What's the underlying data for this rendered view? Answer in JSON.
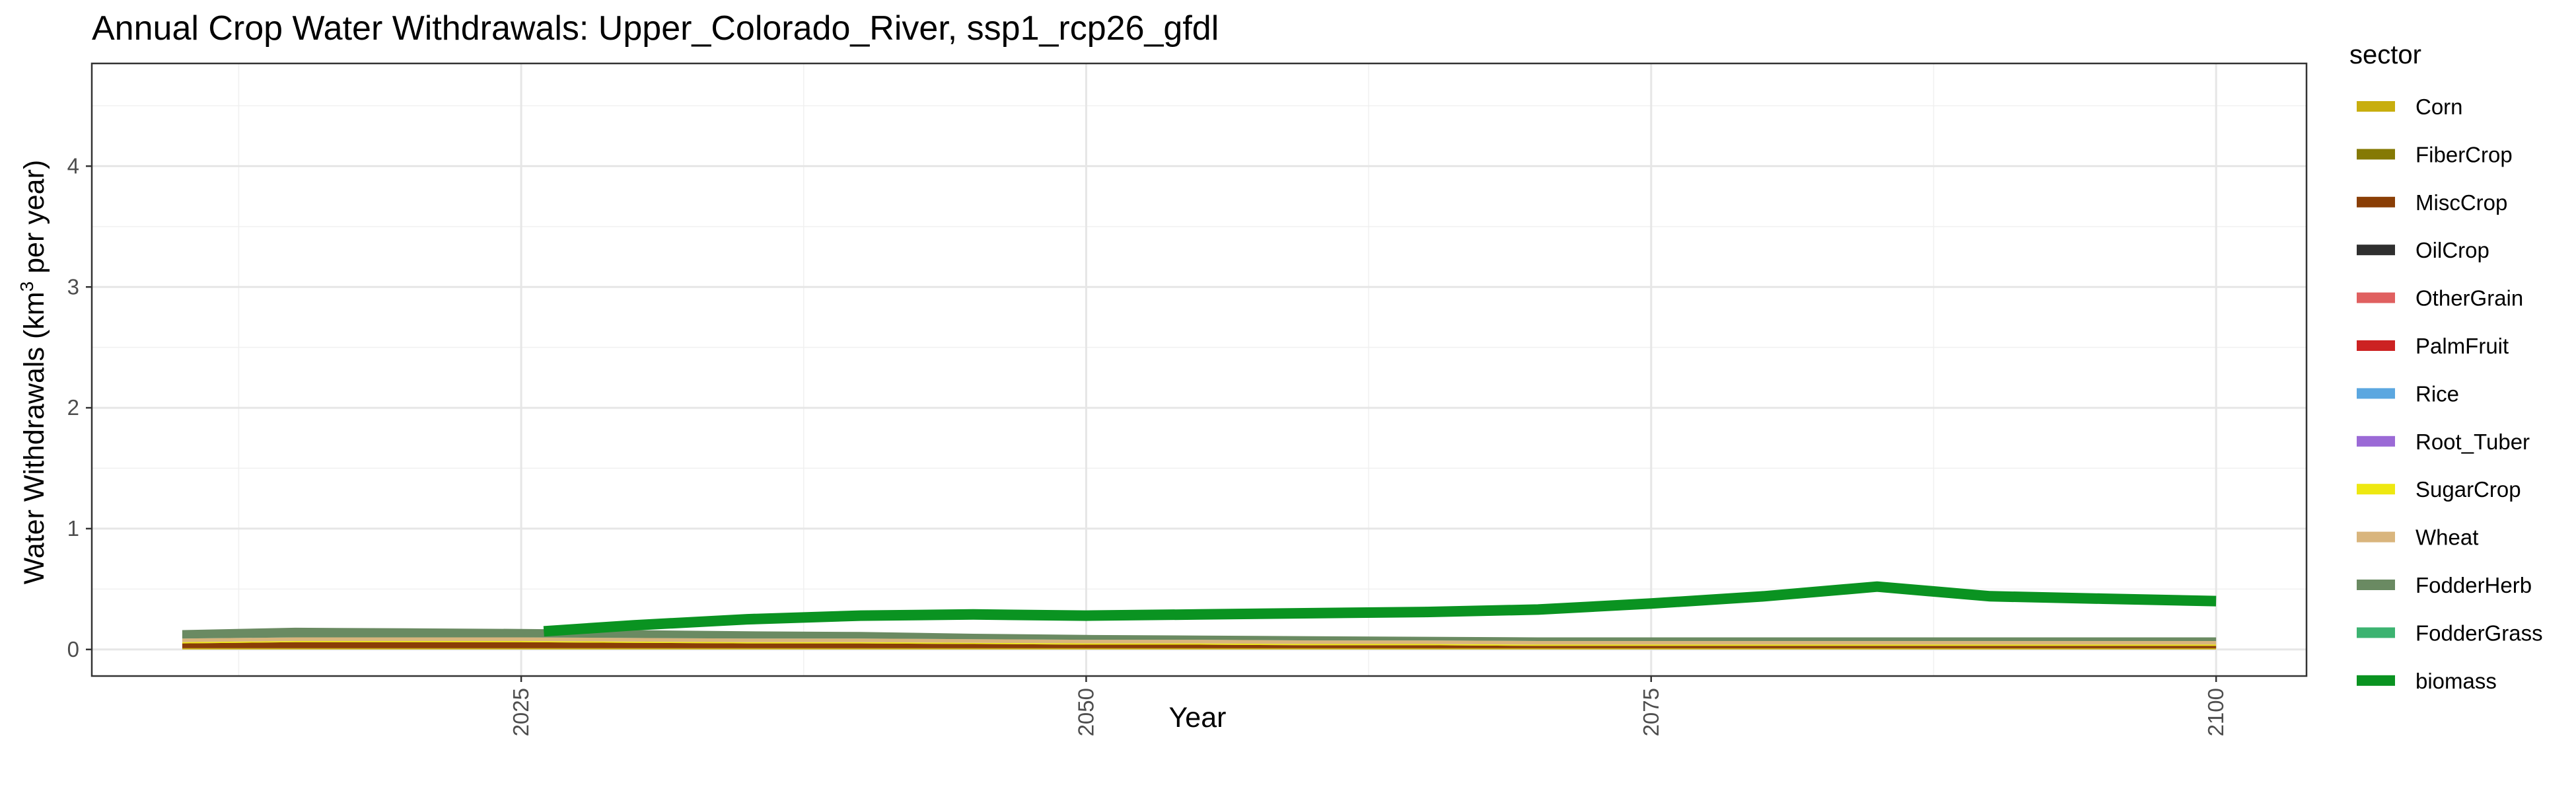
{
  "chart_data": {
    "type": "area",
    "title": "Annual Crop Water Withdrawals: Upper_Colorado_River, ssp1_rcp26_gfdl",
    "xlabel": "Year",
    "ylabel_main": "Water Withdrawals (km",
    "ylabel_sup": "3",
    "ylabel_tail": " per year)",
    "xlim": [
      2006,
      2104
    ],
    "ylim": [
      -0.22,
      4.85
    ],
    "x_ticks": [
      2025,
      2050,
      2075,
      2100
    ],
    "y_ticks": [
      0,
      1,
      2,
      3,
      4
    ],
    "grid": true,
    "legend_position": "right",
    "legend_title": "sector",
    "x": [
      2010,
      2015,
      2020,
      2025,
      2030,
      2035,
      2040,
      2045,
      2050,
      2055,
      2060,
      2065,
      2070,
      2075,
      2080,
      2085,
      2090,
      2095,
      2100
    ],
    "stacked_series": [
      {
        "name": "Corn",
        "color": "#C8AE0E",
        "values": [
          0.01,
          0.01,
          0.01,
          0.01,
          0.01,
          0.01,
          0.01,
          0.01,
          0.01,
          0.01,
          0.01,
          0.01,
          0.01,
          0.01,
          0.01,
          0.01,
          0.01,
          0.01,
          0.01
        ]
      },
      {
        "name": "FiberCrop",
        "color": "#857A05",
        "values": [
          0,
          0,
          0,
          0,
          0,
          0,
          0,
          0,
          0,
          0,
          0,
          0,
          0,
          0,
          0,
          0,
          0,
          0,
          0
        ]
      },
      {
        "name": "MiscCrop",
        "color": "#8A3E06",
        "values": [
          0.04,
          0.05,
          0.05,
          0.05,
          0.045,
          0.04,
          0.04,
          0.035,
          0.03,
          0.03,
          0.025,
          0.025,
          0.02,
          0.02,
          0.02,
          0.02,
          0.02,
          0.02,
          0.02
        ]
      },
      {
        "name": "OilCrop",
        "color": "#2F2F2F",
        "values": [
          0,
          0,
          0,
          0,
          0,
          0,
          0,
          0,
          0,
          0,
          0,
          0,
          0,
          0,
          0,
          0,
          0,
          0,
          0
        ]
      },
      {
        "name": "OtherGrain",
        "color": "#E06060",
        "values": [
          0,
          0,
          0,
          0,
          0,
          0,
          0,
          0,
          0,
          0,
          0,
          0,
          0,
          0,
          0,
          0,
          0,
          0,
          0
        ]
      },
      {
        "name": "PalmFruit",
        "color": "#CC2222",
        "values": [
          0,
          0,
          0,
          0,
          0,
          0,
          0,
          0,
          0,
          0,
          0,
          0,
          0,
          0,
          0,
          0,
          0,
          0,
          0
        ]
      },
      {
        "name": "Rice",
        "color": "#5BA7E0",
        "values": [
          0,
          0,
          0,
          0,
          0,
          0,
          0,
          0,
          0,
          0,
          0,
          0,
          0,
          0,
          0,
          0,
          0,
          0,
          0
        ]
      },
      {
        "name": "Root_Tuber",
        "color": "#9B6AD6",
        "values": [
          0,
          0,
          0,
          0,
          0,
          0,
          0,
          0,
          0,
          0,
          0,
          0,
          0,
          0,
          0,
          0,
          0,
          0,
          0
        ]
      },
      {
        "name": "SugarCrop",
        "color": "#EEE811",
        "values": [
          0.01,
          0.01,
          0.01,
          0.01,
          0.01,
          0.01,
          0.01,
          0.01,
          0.01,
          0.01,
          0.01,
          0.01,
          0.01,
          0.01,
          0.01,
          0.01,
          0.01,
          0.01,
          0.01
        ]
      },
      {
        "name": "Wheat",
        "color": "#D9B57D",
        "values": [
          0.03,
          0.03,
          0.03,
          0.03,
          0.03,
          0.03,
          0.03,
          0.03,
          0.03,
          0.03,
          0.03,
          0.03,
          0.03,
          0.03,
          0.03,
          0.03,
          0.03,
          0.03,
          0.03
        ]
      },
      {
        "name": "FodderHerb",
        "color": "#6A8A62",
        "values": [
          0.07,
          0.08,
          0.075,
          0.07,
          0.065,
          0.06,
          0.055,
          0.045,
          0.04,
          0.035,
          0.035,
          0.03,
          0.03,
          0.03,
          0.03,
          0.03,
          0.03,
          0.03,
          0.03
        ]
      },
      {
        "name": "FodderGrass",
        "color": "#3CB371",
        "values": [
          0,
          0,
          0,
          0,
          0,
          0,
          0,
          0,
          0,
          0,
          0,
          0,
          0,
          0,
          0,
          0,
          0,
          0,
          0
        ]
      }
    ],
    "line_series": [
      {
        "name": "biomass",
        "color": "#0A9321",
        "x": [
          2026,
          2030,
          2035,
          2040,
          2045,
          2050,
          2055,
          2060,
          2065,
          2070,
          2075,
          2080,
          2085,
          2090,
          2095,
          2100
        ],
        "values": [
          0.15,
          0.2,
          0.25,
          0.28,
          0.29,
          0.28,
          0.29,
          0.3,
          0.31,
          0.33,
          0.38,
          0.44,
          0.52,
          0.44,
          0.42,
          0.4
        ]
      }
    ],
    "legend_entries": [
      "Corn",
      "FiberCrop",
      "MiscCrop",
      "OilCrop",
      "OtherGrain",
      "PalmFruit",
      "Rice",
      "Root_Tuber",
      "SugarCrop",
      "Wheat",
      "FodderHerb",
      "FodderGrass",
      "biomass"
    ],
    "legend_colors": [
      "#C8AE0E",
      "#857A05",
      "#8A3E06",
      "#2F2F2F",
      "#E06060",
      "#CC2222",
      "#5BA7E0",
      "#9B6AD6",
      "#EEE811",
      "#D9B57D",
      "#6A8A62",
      "#3CB371",
      "#0A9321"
    ]
  }
}
